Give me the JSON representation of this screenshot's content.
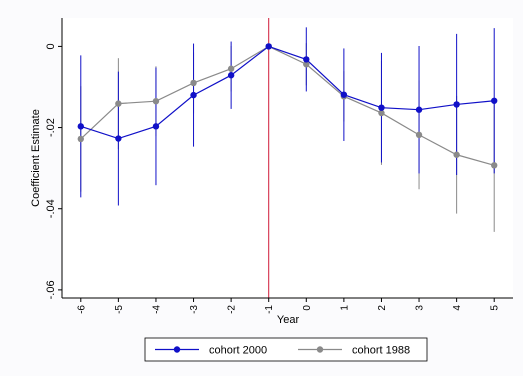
{
  "chart_data": {
    "type": "line",
    "title": "",
    "xlabel": "Year",
    "ylabel": "Coefficient Estimate",
    "x": [
      -6,
      -5,
      -4,
      -3,
      -2,
      -1,
      0,
      1,
      2,
      3,
      4,
      5
    ],
    "x_tick_labels": [
      "-6",
      "-5",
      "-4",
      "-3",
      "-2",
      "-1",
      "0",
      "1",
      "2",
      "3",
      "4",
      "5"
    ],
    "y_ticks": [
      0,
      -0.02,
      -0.04,
      -0.06
    ],
    "y_tick_labels": [
      "0",
      "-.02",
      "-.04",
      "-.06"
    ],
    "ylim": [
      -0.062,
      0.007
    ],
    "xlim": [
      -6.5,
      5.5
    ],
    "reference_line_x": -1,
    "reference_line_color": "#d01a3a",
    "grid": false,
    "legend_position": "bottom",
    "series": [
      {
        "name": "cohort 2000",
        "color": "#1010c8",
        "values": [
          -0.0197,
          -0.0227,
          -0.0197,
          -0.012,
          -0.0071,
          0.0,
          -0.0032,
          -0.0119,
          -0.0151,
          -0.0156,
          -0.0143,
          -0.0134
        ],
        "ci_low": [
          -0.0372,
          -0.0392,
          -0.0342,
          -0.0247,
          -0.0154,
          0.0,
          -0.0111,
          -0.0233,
          -0.0286,
          -0.0313,
          -0.0317,
          -0.0313
        ],
        "ci_high": [
          -0.0022,
          -0.0062,
          -0.0052,
          0.0007,
          0.0012,
          0.0,
          0.0047,
          -0.0005,
          -0.0016,
          0.0001,
          0.0031,
          0.0045
        ]
      },
      {
        "name": "cohort 1988",
        "color": "#8a8a8a",
        "values": [
          -0.0228,
          -0.0141,
          -0.0135,
          -0.009,
          -0.0055,
          0.0,
          -0.0044,
          -0.0123,
          -0.0164,
          -0.0218,
          -0.0267,
          -0.0293
        ],
        "ci_low": [
          -0.0358,
          -0.0253,
          -0.0221,
          -0.0165,
          -0.0111,
          0.0,
          -0.0096,
          -0.0185,
          -0.0292,
          -0.0352,
          -0.0412,
          -0.0457
        ],
        "ci_high": [
          -0.0098,
          -0.0029,
          -0.0049,
          -0.0015,
          0.0001,
          0.0,
          0.0008,
          -0.0061,
          -0.0036,
          -0.0084,
          -0.0122,
          -0.0129
        ]
      }
    ]
  }
}
